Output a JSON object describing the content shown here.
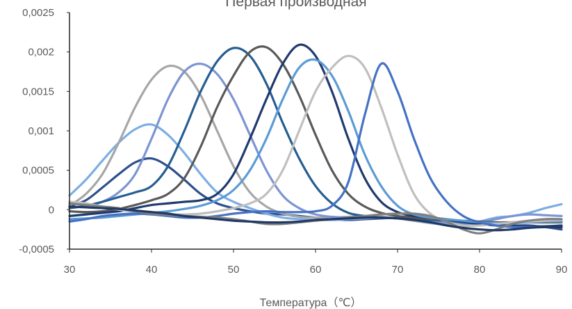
{
  "chart_data": {
    "type": "line",
    "title": "Первая производная",
    "xlabel": "Температура（℃）",
    "ylabel": "",
    "xlim": [
      30,
      90
    ],
    "ylim": [
      -0.0005,
      0.0025
    ],
    "x_ticks": [
      "30",
      "40",
      "50",
      "60",
      "70",
      "80",
      "90"
    ],
    "y_ticks": [
      "-0,0005",
      "0",
      "0,0005",
      "0,001",
      "0,0015",
      "0,002",
      "0,0025"
    ],
    "grid": false,
    "legend": "none",
    "x": [
      30,
      32,
      34,
      36,
      38,
      40,
      42,
      44,
      46,
      48,
      50,
      52,
      54,
      56,
      58,
      60,
      62,
      64,
      66,
      68,
      70,
      72,
      74,
      76,
      78,
      80,
      82,
      84,
      86,
      88,
      90
    ],
    "series": [
      {
        "color": "#2F4E8C",
        "values": [
          5e-05,
          0.00012,
          0.00028,
          0.00045,
          0.0006,
          0.00065,
          0.00055,
          0.00038,
          0.0002,
          8e-05,
          2e-05,
          -2e-05,
          -5e-05,
          -6e-05,
          -8e-05,
          -0.0001,
          -0.00012,
          -0.00013,
          -0.00012,
          -0.00011,
          -0.0001,
          -0.0001,
          -0.00012,
          -0.00014,
          -0.00016,
          -0.00018,
          -0.00019,
          -0.0002,
          -0.0002,
          -0.00022,
          -0.00025
        ]
      },
      {
        "color": "#7BAEE3",
        "values": [
          0.00018,
          0.00038,
          0.00062,
          0.00085,
          0.00102,
          0.00108,
          0.00095,
          0.00072,
          0.00045,
          0.00022,
          0.0001,
          2e-05,
          -5e-05,
          -0.0001,
          -0.00012,
          -0.00013,
          -0.00013,
          -0.00012,
          -0.00011,
          -0.0001,
          -0.00011,
          -0.00014,
          -0.00017,
          -0.00019,
          -0.00019,
          -0.00015,
          -0.0001,
          -8e-05,
          -4e-05,
          2e-05,
          7e-05
        ]
      },
      {
        "color": "#A6A6A6",
        "values": [
          5e-05,
          0.0002,
          0.00045,
          0.00085,
          0.0013,
          0.00165,
          0.00182,
          0.00175,
          0.00145,
          0.001,
          0.00055,
          0.00022,
          4e-05,
          -5e-05,
          -9e-05,
          -0.0001,
          -0.0001,
          -9e-05,
          -8e-05,
          -9e-05,
          -0.00011,
          -0.00014,
          -0.00016,
          -0.00018,
          -0.00019,
          -0.00019,
          -0.00018,
          -0.00016,
          -0.00014,
          -0.00012,
          -0.00012
        ]
      },
      {
        "color": "#7C94D2",
        "values": [
          2e-05,
          5e-05,
          0.0001,
          0.00022,
          0.00045,
          0.0009,
          0.0014,
          0.00175,
          0.00185,
          0.00172,
          0.0014,
          0.00095,
          0.0005,
          0.00018,
          2e-05,
          -6e-05,
          -9e-05,
          -0.0001,
          -0.0001,
          -0.0001,
          -0.00011,
          -0.00013,
          -0.00015,
          -0.00017,
          -0.00018,
          -0.00016,
          -0.00012,
          -8e-05,
          -6e-05,
          -7e-05,
          -8e-05
        ]
      },
      {
        "color": "#255E91",
        "values": [
          2e-05,
          5e-05,
          0.0001,
          0.00016,
          0.00022,
          0.0003,
          0.00055,
          0.001,
          0.0015,
          0.00188,
          0.00205,
          0.00195,
          0.0016,
          0.0011,
          0.00065,
          0.0003,
          8e-05,
          -4e-05,
          -8e-05,
          -0.0001,
          -0.00011,
          -0.00012,
          -0.00013,
          -0.00014,
          -0.00016,
          -0.00018,
          -0.0002,
          -0.00021,
          -0.00022,
          -0.00022,
          -0.00022
        ]
      },
      {
        "color": "#595959",
        "values": [
          -2e-05,
          -3e-05,
          -2e-05,
          1e-05,
          6e-05,
          0.00012,
          0.0002,
          0.0004,
          0.0008,
          0.0013,
          0.0017,
          0.002,
          0.00206,
          0.00185,
          0.00145,
          0.00095,
          0.0005,
          0.0002,
          4e-05,
          -4e-05,
          -8e-05,
          -0.0001,
          -0.00012,
          -0.00013,
          -0.00014,
          -0.00015,
          -0.00016,
          -0.00016,
          -0.00016,
          -0.00016,
          -0.00016
        ]
      },
      {
        "color": "#1F3A6E",
        "values": [
          -8e-05,
          -6e-05,
          -4e-05,
          -2e-05,
          2e-05,
          6e-05,
          8e-05,
          0.0001,
          0.00012,
          0.0002,
          0.00045,
          0.0009,
          0.0014,
          0.00185,
          0.00209,
          0.00195,
          0.0015,
          0.0009,
          0.0004,
          0.0001,
          -3e-05,
          -8e-05,
          -0.0001,
          -0.00012,
          -0.00015,
          -0.00018,
          -0.0002,
          -0.00021,
          -0.00021,
          -0.00021,
          -0.0002
        ]
      },
      {
        "color": "#5B9BD5",
        "values": [
          -0.00012,
          -0.00011,
          -0.0001,
          -8e-05,
          -6e-05,
          -4e-05,
          -2e-05,
          1e-05,
          5e-05,
          0.00012,
          0.00025,
          0.0005,
          0.0009,
          0.0014,
          0.0018,
          0.0019,
          0.0017,
          0.00125,
          0.0007,
          0.0003,
          5e-05,
          -6e-05,
          -0.0001,
          -0.00012,
          -0.00014,
          -0.00016,
          -0.00017,
          -0.00017,
          -0.00016,
          -0.00015,
          -0.00015
        ]
      },
      {
        "color": "#BFBFBF",
        "values": [
          0.0001,
          8e-05,
          4e-05,
          0,
          -3e-05,
          -5e-05,
          -6e-05,
          -6e-05,
          -5e-05,
          -2e-05,
          2e-05,
          8e-05,
          0.0002,
          0.0005,
          0.001,
          0.0015,
          0.0018,
          0.00195,
          0.0018,
          0.0013,
          0.0007,
          0.0002,
          -5e-05,
          -0.00015,
          -0.0002,
          -0.0002,
          -0.00018,
          -0.00016,
          -0.00015,
          -0.00014,
          -0.00013
        ]
      },
      {
        "color": "#4472C4",
        "values": [
          -0.00015,
          -0.00012,
          -8e-05,
          -6e-05,
          -5e-05,
          -6e-05,
          -8e-05,
          -0.0001,
          -0.0001,
          -8e-05,
          -5e-05,
          -3e-05,
          -2e-05,
          -3e-05,
          -3e-05,
          -2e-05,
          5e-05,
          0.00035,
          0.0012,
          0.00185,
          0.0015,
          0.0009,
          0.0004,
          0.0001,
          -8e-05,
          -0.00016,
          -0.0002,
          -0.00022,
          -0.00022,
          -0.00022,
          -0.00022
        ]
      },
      {
        "color": "#808080",
        "values": [
          8e-05,
          6e-05,
          4e-05,
          2e-05,
          -2e-05,
          -5e-05,
          -7e-05,
          -8e-05,
          -9e-05,
          -0.0001,
          -0.00012,
          -0.00015,
          -0.00018,
          -0.00018,
          -0.00016,
          -0.00014,
          -0.00012,
          -0.0001,
          -8e-05,
          -6e-05,
          -5e-05,
          -5e-05,
          -8e-05,
          -0.00015,
          -0.00025,
          -0.0003,
          -0.00025,
          -0.00018,
          -0.00014,
          -0.00012,
          -0.00012
        ]
      },
      {
        "color": "#203864",
        "values": [
          4e-05,
          3e-05,
          2e-05,
          1e-05,
          -1e-05,
          -3e-05,
          -5e-05,
          -8e-05,
          -0.0001,
          -0.00012,
          -0.00014,
          -0.00015,
          -0.00016,
          -0.00016,
          -0.00015,
          -0.00013,
          -0.00012,
          -0.00011,
          -0.0001,
          -0.0001,
          -0.00011,
          -0.00013,
          -0.00016,
          -0.0002,
          -0.00023,
          -0.00025,
          -0.00026,
          -0.00025,
          -0.00023,
          -0.00022,
          -0.00022
        ]
      }
    ]
  }
}
